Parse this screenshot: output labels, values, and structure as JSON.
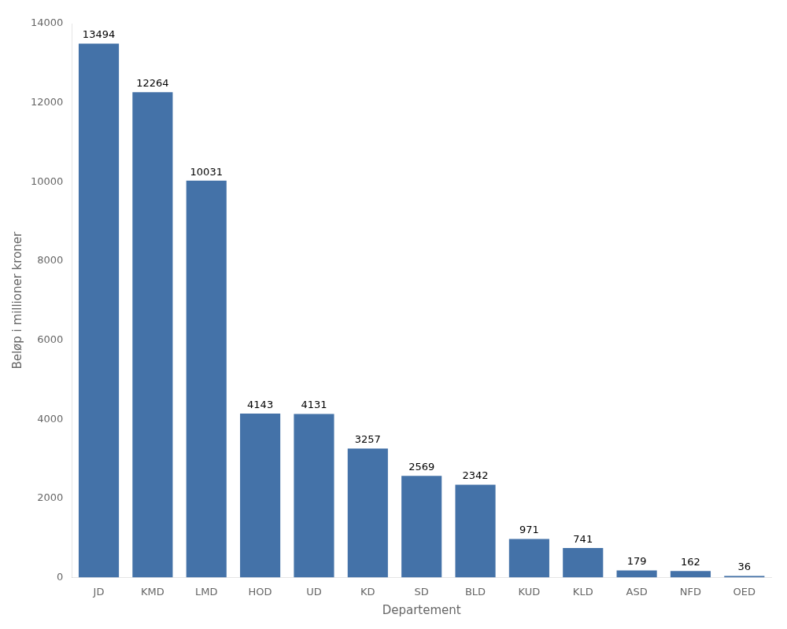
{
  "chart_data": {
    "type": "bar",
    "categories": [
      "JD",
      "KMD",
      "LMD",
      "HOD",
      "UD",
      "KD",
      "SD",
      "BLD",
      "KUD",
      "KLD",
      "ASD",
      "NFD",
      "OED"
    ],
    "values": [
      13494,
      12264,
      10031,
      4143,
      4131,
      3257,
      2569,
      2342,
      971,
      741,
      179,
      162,
      36
    ],
    "color": "#4472a8",
    "xlabel": "Departement",
    "ylabel": "Beløp i millioner kroner",
    "ylim": [
      0,
      14000
    ],
    "yticks": [
      0,
      2000,
      4000,
      6000,
      8000,
      10000,
      12000,
      14000
    ],
    "grid": false,
    "data_labels": true
  }
}
